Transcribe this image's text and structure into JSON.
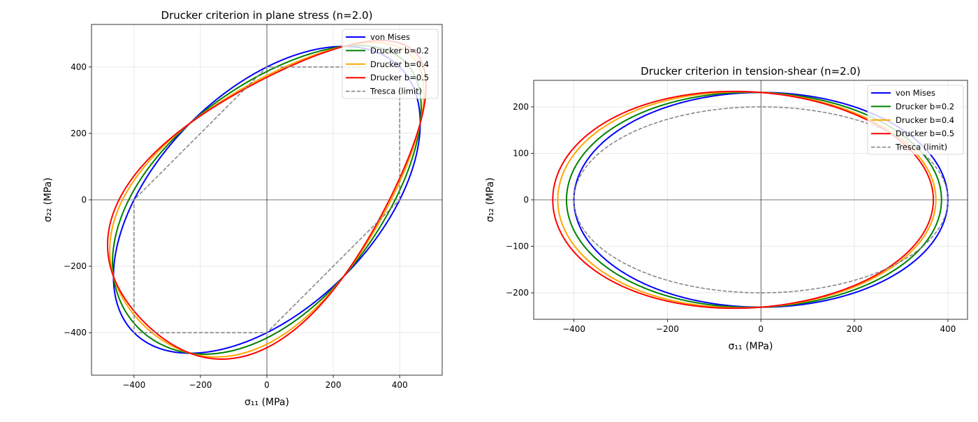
{
  "chart_data": [
    {
      "type": "line",
      "title": "Drucker criterion in plane stress (n=2.0)",
      "xlabel": "σ₁₁ (MPa)",
      "ylabel": "σ₂₂ (MPa)",
      "xlim": [
        -528,
        528
      ],
      "ylim": [
        -528,
        528
      ],
      "xticks": [
        -400,
        -200,
        0,
        200,
        400
      ],
      "yticks": [
        -400,
        -200,
        0,
        200,
        400
      ],
      "grid": true,
      "legend_position": "top-right",
      "yield_stress": 400,
      "n": 2.0,
      "loading": "plane-stress",
      "series": [
        {
          "name": "von Mises",
          "b": 0.0,
          "color": "#0000ff",
          "style": "solid"
        },
        {
          "name": "Drucker b=0.2",
          "b": 0.2,
          "color": "#008000",
          "style": "solid"
        },
        {
          "name": "Drucker b=0.4",
          "b": 0.4,
          "color": "#ffa500",
          "style": "solid"
        },
        {
          "name": "Drucker b=0.5",
          "b": 0.5,
          "color": "#ff0000",
          "style": "solid"
        },
        {
          "name": "Tresca (limit)",
          "color": "#808080",
          "style": "dashed",
          "points": [
            [
              400,
              0
            ],
            [
              400,
              400
            ],
            [
              0,
              400
            ],
            [
              -400,
              0
            ],
            [
              -400,
              -400
            ],
            [
              0,
              -400
            ],
            [
              400,
              0
            ]
          ]
        }
      ]
    },
    {
      "type": "line",
      "title": "Drucker criterion in tension-shear (n=2.0)",
      "xlabel": "σ₁₁ (MPa)",
      "ylabel": "σ₁₂ (MPa)",
      "xlim": [
        -486,
        442
      ],
      "ylim": [
        -257,
        257
      ],
      "xticks": [
        -400,
        -200,
        0,
        200,
        400
      ],
      "yticks": [
        -200,
        -100,
        0,
        100,
        200
      ],
      "grid": true,
      "legend_position": "top-right",
      "yield_stress": 400,
      "n": 2.0,
      "loading": "tension-shear",
      "series": [
        {
          "name": "von Mises",
          "b": 0.0,
          "color": "#0000ff",
          "style": "solid"
        },
        {
          "name": "Drucker b=0.2",
          "b": 0.2,
          "color": "#008000",
          "style": "solid"
        },
        {
          "name": "Drucker b=0.4",
          "b": 0.4,
          "color": "#ffa500",
          "style": "solid"
        },
        {
          "name": "Drucker b=0.5",
          "b": 0.5,
          "color": "#ff0000",
          "style": "solid"
        },
        {
          "name": "Tresca (limit)",
          "color": "#808080",
          "style": "dashed",
          "shear_limit": 200
        }
      ]
    }
  ]
}
